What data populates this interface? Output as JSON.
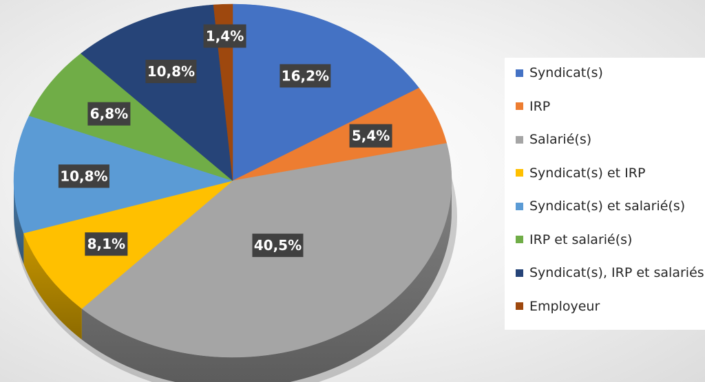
{
  "chart_data": {
    "type": "pie",
    "three_d": true,
    "categories": [
      "Syndicat(s)",
      "IRP",
      "Salarié(s)",
      "Syndicat(s) et IRP",
      "Syndicat(s) et salarié(s)",
      "IRP et salarié(s)",
      "Syndicat(s), IRP et salariés",
      "Employeur"
    ],
    "values": [
      16.2,
      5.4,
      40.5,
      8.1,
      10.8,
      6.8,
      10.8,
      1.4
    ],
    "data_labels": [
      "16,2%",
      "5,4%",
      "40,5%",
      "8,1%",
      "10,8%",
      "6,8%",
      "10,8%",
      "1,4%"
    ],
    "colors": [
      "#4472C4",
      "#ED7D31",
      "#A5A5A5",
      "#FFC000",
      "#5B9BD5",
      "#70AD47",
      "#264478",
      "#9E480E"
    ],
    "legend_position": "right",
    "title": ""
  }
}
